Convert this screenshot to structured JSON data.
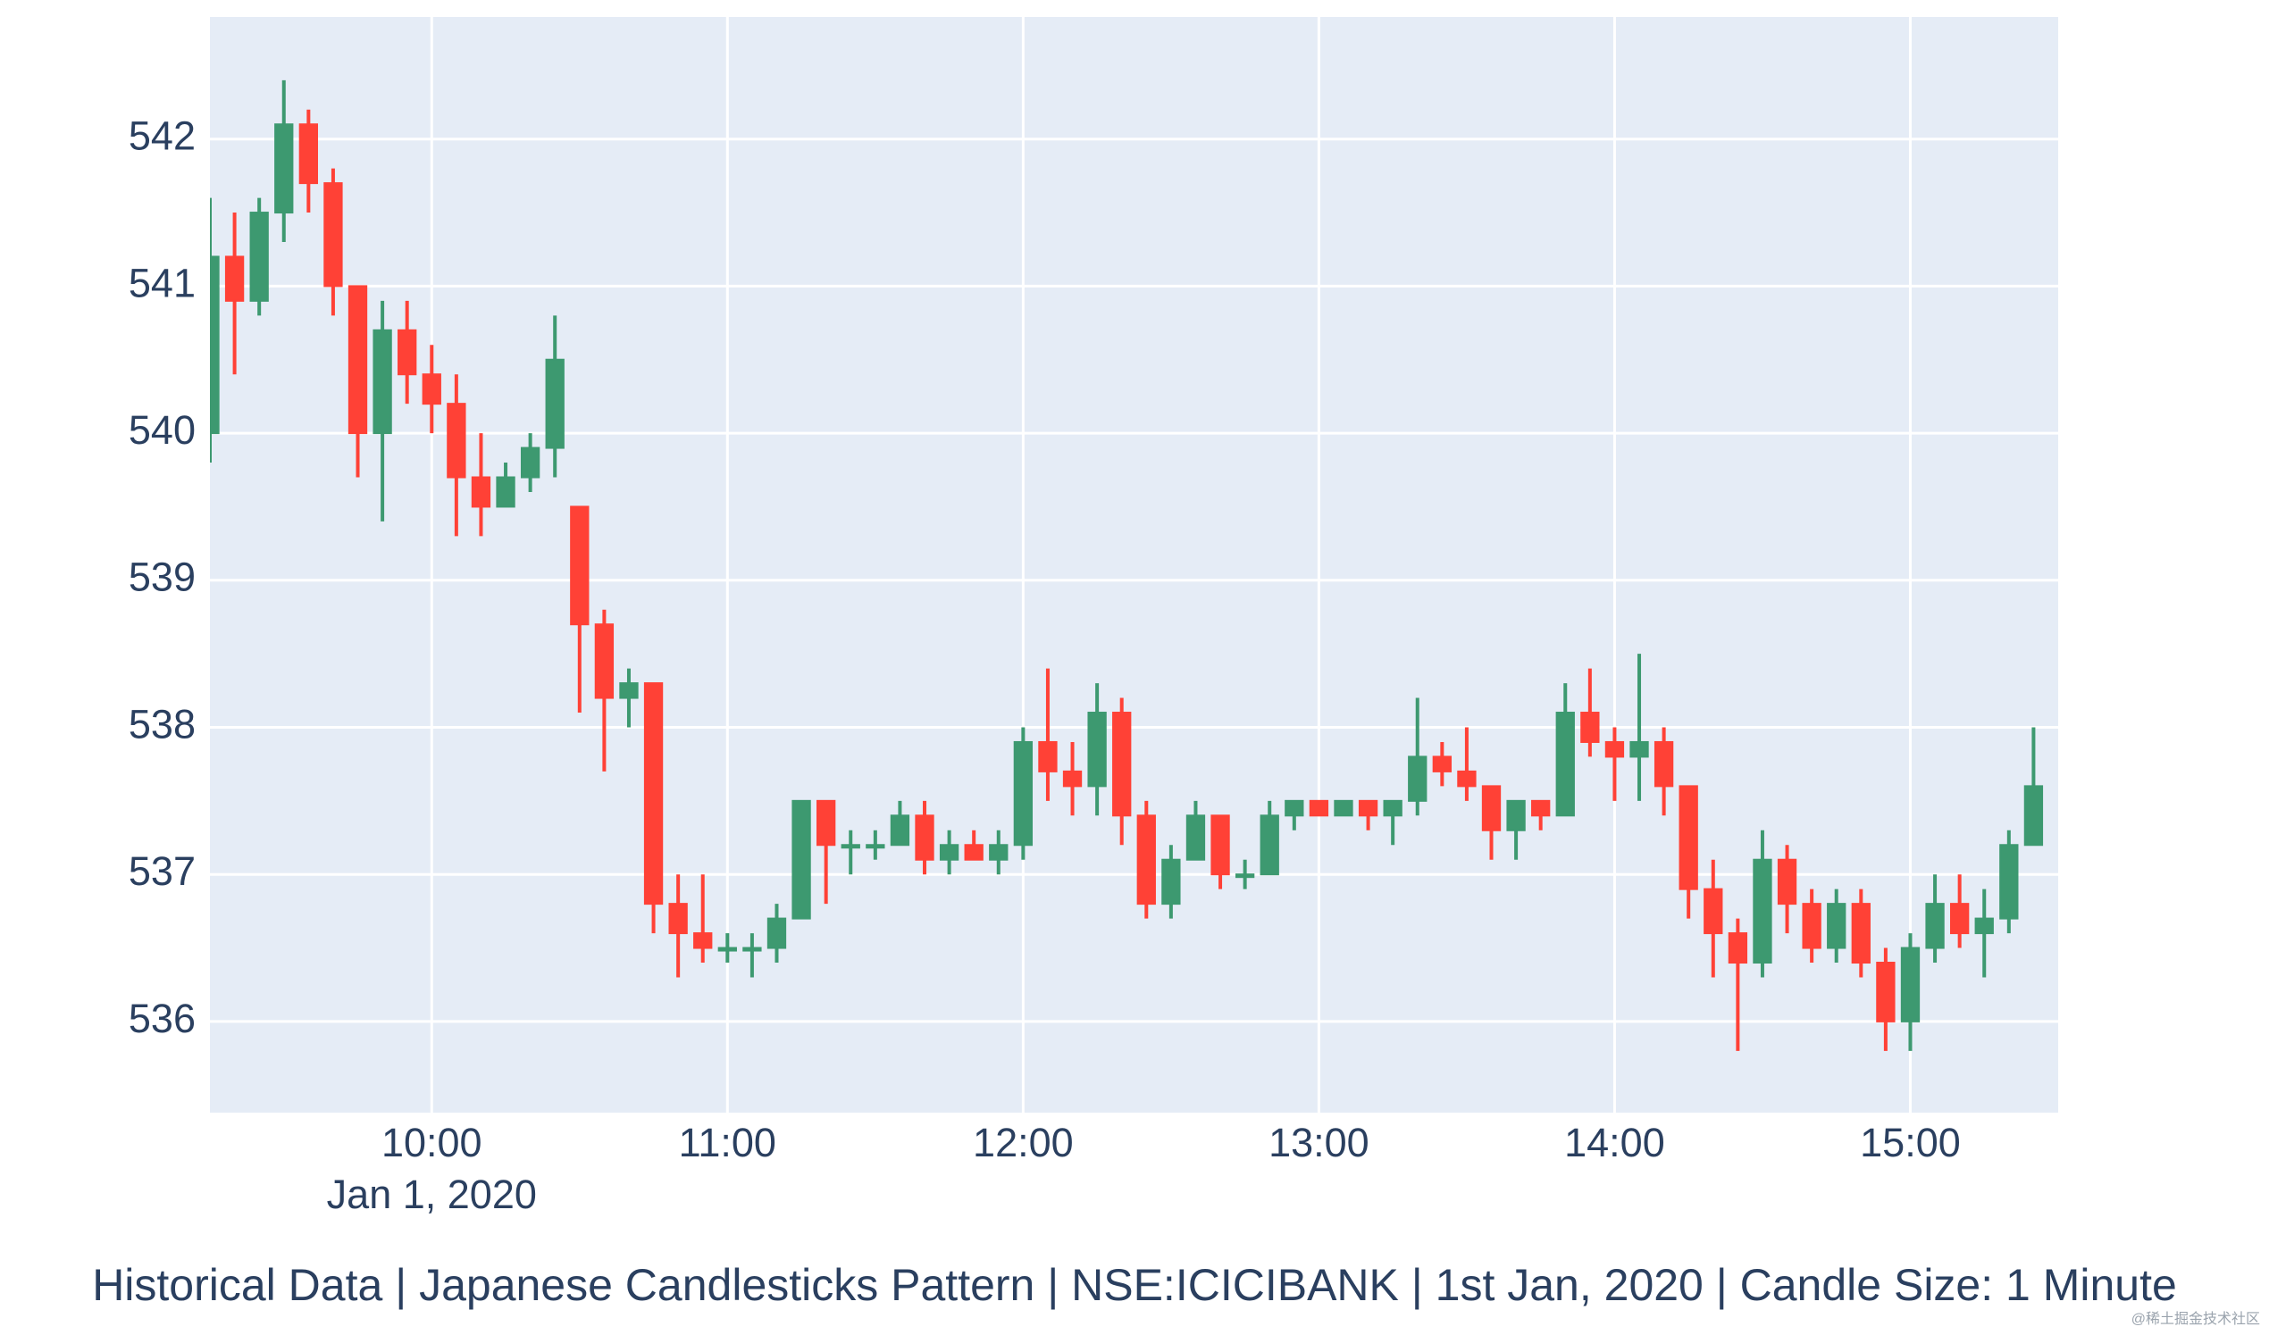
{
  "chart_data": {
    "type": "candlestick",
    "title": "Historical Data | Japanese Candlesticks Pattern | NSE:ICICIBANK | 1st Jan, 2020 | Candle Size: 1 Minute",
    "x_date_label": "Jan 1, 2020",
    "watermark": "@稀土掘金技术社区",
    "x": [
      "09:15",
      "09:20",
      "09:25",
      "09:30",
      "09:35",
      "09:40",
      "09:45",
      "09:50",
      "09:55",
      "10:00",
      "10:05",
      "10:10",
      "10:15",
      "10:20",
      "10:25",
      "10:30",
      "10:35",
      "10:40",
      "10:45",
      "10:50",
      "10:55",
      "11:00",
      "11:05",
      "11:10",
      "11:15",
      "11:20",
      "11:25",
      "11:30",
      "11:35",
      "11:40",
      "11:45",
      "11:50",
      "11:55",
      "12:00",
      "12:05",
      "12:10",
      "12:15",
      "12:20",
      "12:25",
      "12:30",
      "12:35",
      "12:40",
      "12:45",
      "12:50",
      "12:55",
      "13:00",
      "13:05",
      "13:10",
      "13:15",
      "13:20",
      "13:25",
      "13:30",
      "13:35",
      "13:40",
      "13:45",
      "13:50",
      "13:55",
      "14:00",
      "14:05",
      "14:10",
      "14:15",
      "14:20",
      "14:25",
      "14:30",
      "14:35",
      "14:40",
      "14:45",
      "14:50",
      "14:55",
      "15:00",
      "15:05",
      "15:10",
      "15:15",
      "15:20",
      "15:25"
    ],
    "open": [
      540.0,
      541.2,
      540.9,
      541.5,
      542.1,
      541.7,
      541.0,
      540.0,
      540.7,
      540.4,
      540.2,
      539.7,
      539.5,
      539.7,
      539.9,
      539.5,
      538.7,
      538.2,
      538.3,
      536.8,
      536.6,
      536.5,
      536.5,
      536.5,
      536.7,
      537.5,
      537.2,
      537.2,
      537.2,
      537.4,
      537.1,
      537.2,
      537.1,
      537.2,
      537.9,
      537.7,
      537.6,
      538.1,
      537.4,
      536.8,
      537.1,
      537.4,
      537.0,
      537.0,
      537.4,
      537.5,
      537.4,
      537.5,
      537.4,
      537.5,
      537.8,
      537.7,
      537.6,
      537.3,
      537.5,
      537.4,
      538.1,
      537.9,
      537.8,
      537.9,
      537.6,
      536.9,
      536.6,
      536.4,
      537.1,
      536.8,
      536.5,
      536.8,
      536.4,
      536.0,
      536.5,
      536.8,
      536.6,
      536.7,
      537.2
    ],
    "high": [
      541.6,
      541.5,
      541.6,
      542.4,
      542.2,
      541.8,
      541.0,
      540.9,
      540.9,
      540.6,
      540.4,
      540.0,
      539.8,
      540.0,
      540.8,
      539.5,
      538.8,
      538.4,
      538.3,
      537.0,
      537.0,
      536.6,
      536.6,
      536.8,
      537.5,
      537.5,
      537.3,
      537.3,
      537.5,
      537.5,
      537.3,
      537.3,
      537.3,
      538.0,
      538.4,
      537.9,
      538.3,
      538.2,
      537.5,
      537.2,
      537.5,
      537.4,
      537.1,
      537.5,
      537.5,
      537.5,
      537.5,
      537.5,
      537.5,
      538.2,
      537.9,
      538.0,
      537.6,
      537.5,
      537.5,
      538.3,
      538.4,
      538.0,
      538.5,
      538.0,
      537.6,
      537.1,
      536.7,
      537.3,
      537.2,
      536.9,
      536.9,
      536.9,
      536.5,
      536.6,
      537.0,
      537.0,
      536.9,
      537.3,
      538.0
    ],
    "low": [
      539.8,
      540.4,
      540.8,
      541.3,
      541.5,
      540.8,
      539.7,
      539.4,
      540.2,
      540.0,
      539.3,
      539.3,
      539.5,
      539.6,
      539.7,
      538.1,
      537.7,
      538.0,
      536.6,
      536.3,
      536.4,
      536.4,
      536.3,
      536.4,
      536.7,
      536.8,
      537.0,
      537.1,
      537.2,
      537.0,
      537.0,
      537.1,
      537.0,
      537.1,
      537.5,
      537.4,
      537.4,
      537.2,
      536.7,
      536.7,
      537.1,
      536.9,
      536.9,
      537.0,
      537.3,
      537.4,
      537.4,
      537.3,
      537.2,
      537.4,
      537.6,
      537.5,
      537.1,
      537.1,
      537.3,
      537.4,
      537.8,
      537.5,
      537.5,
      537.4,
      536.7,
      536.3,
      535.8,
      536.3,
      536.6,
      536.4,
      536.4,
      536.3,
      535.8,
      535.8,
      536.4,
      536.5,
      536.3,
      536.6,
      537.2
    ],
    "close": [
      541.2,
      540.9,
      541.5,
      542.1,
      541.7,
      541.0,
      540.0,
      540.7,
      540.4,
      540.2,
      539.7,
      539.5,
      539.7,
      539.9,
      540.5,
      538.7,
      538.2,
      538.3,
      536.8,
      536.6,
      536.5,
      536.5,
      536.5,
      536.7,
      537.5,
      537.2,
      537.2,
      537.2,
      537.4,
      537.1,
      537.2,
      537.1,
      537.2,
      537.9,
      537.7,
      537.6,
      538.1,
      537.4,
      536.8,
      537.1,
      537.4,
      537.0,
      537.0,
      537.4,
      537.5,
      537.4,
      537.5,
      537.4,
      537.5,
      537.8,
      537.7,
      537.6,
      537.3,
      537.5,
      537.4,
      538.1,
      537.9,
      537.8,
      537.9,
      537.6,
      536.9,
      536.6,
      536.4,
      537.1,
      536.8,
      536.5,
      536.8,
      536.4,
      536.0,
      536.5,
      536.8,
      536.6,
      536.7,
      537.2,
      537.6
    ],
    "increasing_color": "#3d9970",
    "decreasing_color": "#ff4136",
    "plot_bgcolor": "#e5ecf6",
    "grid": true,
    "xlim": [
      "09:15",
      "15:30"
    ],
    "xticks": [
      "10:00",
      "11:00",
      "12:00",
      "13:00",
      "14:00",
      "15:00"
    ],
    "ylim": [
      535.38,
      542.83
    ],
    "yticks": [
      536,
      537,
      538,
      539,
      540,
      541,
      542
    ]
  }
}
